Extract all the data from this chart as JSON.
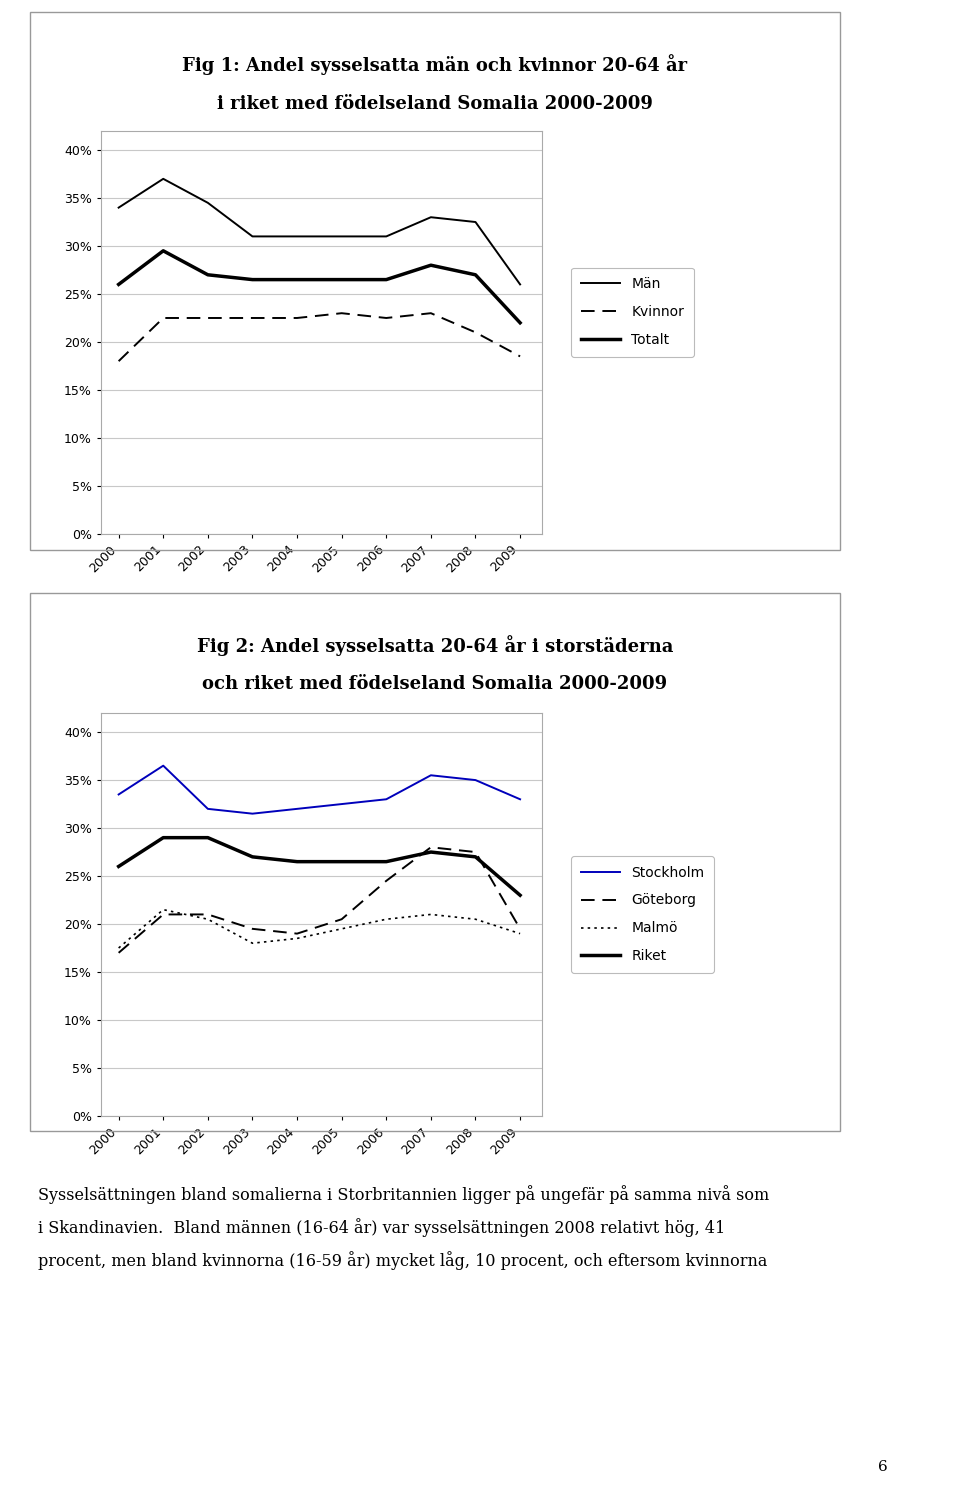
{
  "years": [
    2000,
    2001,
    2002,
    2003,
    2004,
    2005,
    2006,
    2007,
    2008,
    2009
  ],
  "fig1_title_line1": "Fig 1: Andel sysselsatta män och kvinnor 20-64 år",
  "fig1_title_line2": "i riket med födelseland Somalia 2000-2009",
  "fig1_man": [
    0.34,
    0.37,
    0.345,
    0.31,
    0.31,
    0.31,
    0.31,
    0.33,
    0.325,
    0.26
  ],
  "fig1_kvinna": [
    0.18,
    0.225,
    0.225,
    0.225,
    0.225,
    0.23,
    0.225,
    0.23,
    0.21,
    0.185
  ],
  "fig1_totalt": [
    0.26,
    0.295,
    0.27,
    0.265,
    0.265,
    0.265,
    0.265,
    0.28,
    0.27,
    0.22
  ],
  "fig2_title_line1": "Fig 2: Andel sysselsatta 20-64 år i storstäderna",
  "fig2_title_line2": "och riket med födelseland Somalia 2000-2009",
  "fig2_stockholm": [
    0.335,
    0.365,
    0.32,
    0.315,
    0.32,
    0.325,
    0.33,
    0.355,
    0.35,
    0.33
  ],
  "fig2_goteborg": [
    0.17,
    0.21,
    0.21,
    0.195,
    0.19,
    0.205,
    0.245,
    0.28,
    0.275,
    0.195
  ],
  "fig2_malmo": [
    0.175,
    0.215,
    0.205,
    0.18,
    0.185,
    0.195,
    0.205,
    0.21,
    0.205,
    0.19
  ],
  "fig2_riket": [
    0.26,
    0.29,
    0.29,
    0.27,
    0.265,
    0.265,
    0.265,
    0.275,
    0.27,
    0.23
  ],
  "page_number": "6",
  "ylim": [
    0.0,
    0.42
  ],
  "yticks": [
    0.0,
    0.05,
    0.1,
    0.15,
    0.2,
    0.25,
    0.3,
    0.35,
    0.4
  ],
  "color_man": "#000000",
  "color_kvinna": "#000000",
  "color_totalt": "#000000",
  "color_stockholm": "#0000bb",
  "color_goteborg": "#000000",
  "color_malmo": "#000000",
  "color_riket": "#000000",
  "bg_color": "#ffffff",
  "box_bg": "#ffffff",
  "grid_color": "#c8c8c8",
  "text1": "Sysselsättningen bland somalierna i Storbritannien ligger på ungefär på samma nivå som",
  "text2": "i Skandinavien.  Bland männen (16-64 år) var sysselsättningen 2008 relativt hög, 41",
  "text3": "procent, men bland kvinnorna (16-59 år) mycket låg, 10 procent, och eftersom kvinnorna"
}
